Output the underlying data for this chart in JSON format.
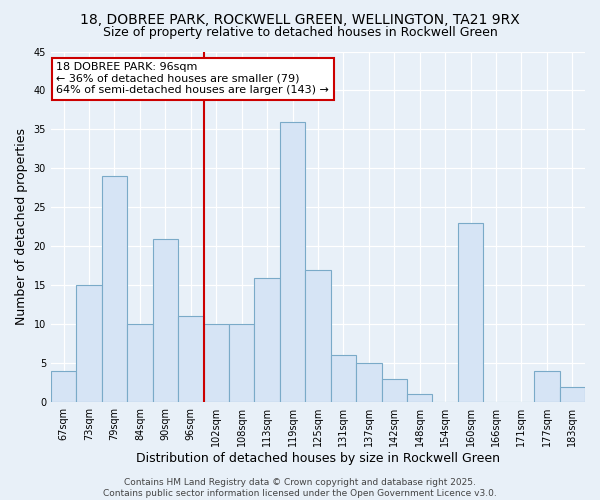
{
  "title1": "18, DOBREE PARK, ROCKWELL GREEN, WELLINGTON, TA21 9RX",
  "title2": "Size of property relative to detached houses in Rockwell Green",
  "xlabel": "Distribution of detached houses by size in Rockwell Green",
  "ylabel": "Number of detached properties",
  "categories": [
    "67sqm",
    "73sqm",
    "79sqm",
    "84sqm",
    "90sqm",
    "96sqm",
    "102sqm",
    "108sqm",
    "113sqm",
    "119sqm",
    "125sqm",
    "131sqm",
    "137sqm",
    "142sqm",
    "148sqm",
    "154sqm",
    "160sqm",
    "166sqm",
    "171sqm",
    "177sqm",
    "183sqm"
  ],
  "values": [
    4,
    15,
    29,
    10,
    21,
    11,
    10,
    10,
    16,
    36,
    17,
    6,
    5,
    3,
    1,
    0,
    23,
    0,
    0,
    4,
    2
  ],
  "bar_color": "#d6e4f5",
  "bar_edge_color": "#7aaac8",
  "vline_index": 5,
  "vline_color": "#cc0000",
  "annotation_line1": "18 DOBREE PARK: 96sqm",
  "annotation_line2": "← 36% of detached houses are smaller (79)",
  "annotation_line3": "64% of semi-detached houses are larger (143) →",
  "annotation_box_color": "#cc0000",
  "annotation_box_bg": "#ffffff",
  "ylim": [
    0,
    45
  ],
  "yticks": [
    0,
    5,
    10,
    15,
    20,
    25,
    30,
    35,
    40,
    45
  ],
  "footer": "Contains HM Land Registry data © Crown copyright and database right 2025.\nContains public sector information licensed under the Open Government Licence v3.0.",
  "bg_color": "#e8f0f8",
  "plot_bg_color": "#e8f0f8",
  "grid_color": "#ffffff",
  "title_fontsize": 10,
  "subtitle_fontsize": 9,
  "axis_label_fontsize": 9,
  "tick_fontsize": 7,
  "footer_fontsize": 6.5,
  "annotation_fontsize": 8
}
